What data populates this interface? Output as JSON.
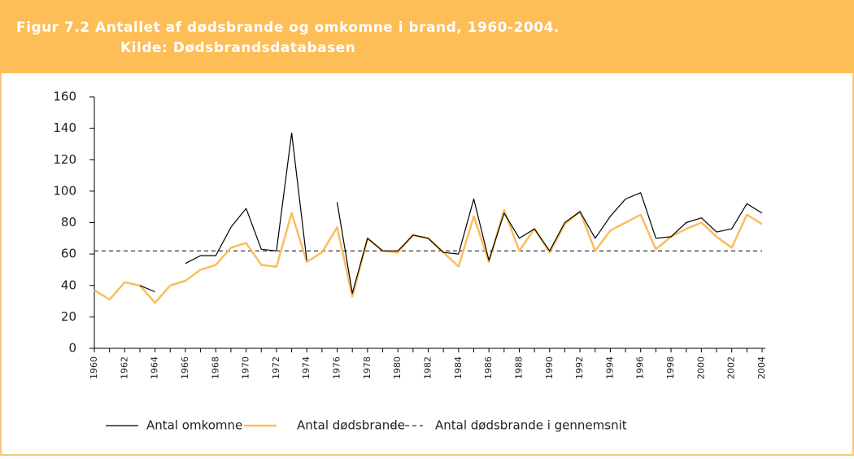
{
  "chart_data": {
    "type": "line",
    "title": "Figur 7.2 Antallet af dødsbrande og omkomne i brand, 1960-2004.",
    "subtitle": "Kilde: Dødsbrandsdatabasen",
    "categories": [
      "1960",
      null,
      "1962",
      null,
      "1964",
      null,
      "1966",
      null,
      "1968",
      null,
      "1970",
      null,
      "1972",
      null,
      "1974",
      null,
      "1976",
      null,
      "1978",
      null,
      "1980",
      null,
      "1982",
      null,
      "1984",
      null,
      "1986",
      null,
      "1988",
      null,
      "1990",
      null,
      "1992",
      null,
      "1994",
      null,
      "1996",
      null,
      "1998",
      null,
      "2000",
      null,
      "2002",
      null,
      "2004"
    ],
    "series": [
      {
        "name": "Antal omkomne",
        "color": "#000000",
        "values": [
          null,
          null,
          null,
          40,
          36,
          null,
          54,
          59,
          59,
          77,
          89,
          63,
          62,
          137,
          56,
          null,
          93,
          35,
          70,
          62,
          62,
          72,
          70,
          61,
          60,
          95,
          56,
          86,
          70,
          76,
          62,
          80,
          87,
          70,
          84,
          95,
          99,
          70,
          71,
          80,
          83,
          74,
          76,
          92,
          86
        ]
      },
      {
        "name": "Antal dødsbrande",
        "color": "#fbbd5c",
        "values": [
          37,
          31,
          42,
          40,
          29,
          40,
          43,
          50,
          53,
          64,
          67,
          53,
          52,
          86,
          55,
          61,
          77,
          33,
          70,
          62,
          61,
          72,
          70,
          61,
          52,
          84,
          55,
          88,
          62,
          76,
          61,
          79,
          87,
          62,
          75,
          80,
          85,
          63,
          71,
          76,
          80,
          71,
          64,
          85,
          79
        ]
      }
    ],
    "reference_line": {
      "name": "Antal dødsbrande i gennemsnit",
      "value": 62,
      "color": "#000000"
    },
    "ylim": [
      0,
      160
    ],
    "yticks": [
      0,
      20,
      40,
      60,
      80,
      100,
      120,
      140,
      160
    ]
  }
}
